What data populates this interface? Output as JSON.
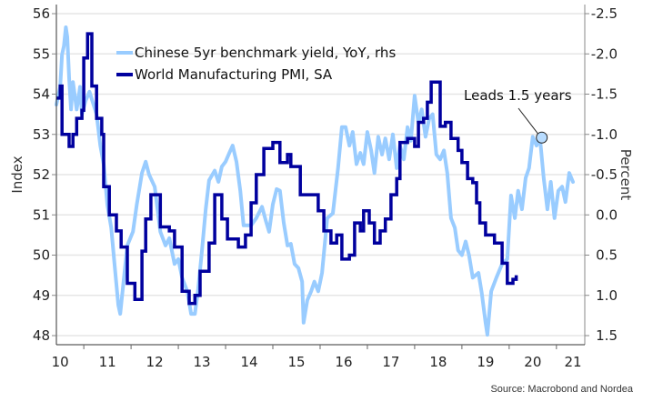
{
  "chart_data": {
    "type": "line",
    "title": "",
    "source": "Source: Macrobond and Nordea",
    "ylabel": "Index",
    "y2label": "Percent",
    "ylim": [
      48,
      56
    ],
    "y2lim": [
      -2.5,
      1.5
    ],
    "y2_inverted": true,
    "xlim": [
      2010.42,
      2021.6
    ],
    "grid": true,
    "yticks": [
      "48",
      "49",
      "50",
      "51",
      "52",
      "53",
      "54",
      "55",
      "56"
    ],
    "ytick_values": [
      48,
      49,
      50,
      51,
      52,
      53,
      54,
      55,
      56
    ],
    "y2ticks": [
      "-2.5",
      "-2.0",
      "-1.5",
      "-1.0",
      "-0.5",
      "0.0",
      "0.5",
      "1.0",
      "1.5"
    ],
    "y2tick_values": [
      -2.5,
      -2.0,
      -1.5,
      -1.0,
      -0.5,
      0.0,
      0.5,
      1.0,
      1.5
    ],
    "xtick_boundaries": [
      2011,
      2012,
      2013,
      2014,
      2015,
      2016,
      2017,
      2018,
      2019,
      2020,
      2021
    ],
    "xticks": [
      "10",
      "11",
      "12",
      "13",
      "14",
      "15",
      "16",
      "17",
      "18",
      "19",
      "20",
      "21"
    ],
    "xtick_label_years": [
      2010.5,
      2011.5,
      2012.5,
      2013.5,
      2014.5,
      2015.5,
      2016.5,
      2017.5,
      2018.5,
      2019.5,
      2020.5,
      2021.35
    ],
    "legend": {
      "placement": "top-left"
    },
    "colors": {
      "yield": "#99ccff",
      "pmi": "#00009e"
    },
    "annotation": {
      "text": "Leads 1.5 years",
      "x": 2020.69,
      "y2": -0.96
    },
    "series": [
      {
        "name": "Chinese 5yr benchmark yield, YoY, rhs",
        "axis": "right",
        "points": [
          [
            2010.42,
            -1.37
          ],
          [
            2010.5,
            -1.59
          ],
          [
            2010.54,
            -1.99
          ],
          [
            2010.58,
            -2.1
          ],
          [
            2010.62,
            -2.33
          ],
          [
            2010.65,
            -2.21
          ],
          [
            2010.69,
            -1.7
          ],
          [
            2010.73,
            -1.31
          ],
          [
            2010.77,
            -1.65
          ],
          [
            2010.81,
            -1.48
          ],
          [
            2010.85,
            -1.31
          ],
          [
            2010.88,
            -1.42
          ],
          [
            2010.92,
            -1.59
          ],
          [
            2010.96,
            -1.25
          ],
          [
            2011.04,
            -1.42
          ],
          [
            2011.12,
            -1.53
          ],
          [
            2011.19,
            -1.4
          ],
          [
            2011.27,
            -1.25
          ],
          [
            2011.35,
            -0.86
          ],
          [
            2011.42,
            -0.63
          ],
          [
            2011.5,
            -0.12
          ],
          [
            2011.58,
            0.16
          ],
          [
            2011.65,
            0.61
          ],
          [
            2011.73,
            1.12
          ],
          [
            2011.77,
            1.23
          ],
          [
            2011.85,
            0.78
          ],
          [
            2011.92,
            0.38
          ],
          [
            2012.04,
            0.21
          ],
          [
            2012.12,
            -0.12
          ],
          [
            2012.23,
            -0.52
          ],
          [
            2012.31,
            -0.66
          ],
          [
            2012.38,
            -0.5
          ],
          [
            2012.5,
            -0.35
          ],
          [
            2012.62,
            0.21
          ],
          [
            2012.73,
            0.38
          ],
          [
            2012.81,
            0.29
          ],
          [
            2012.92,
            0.61
          ],
          [
            2013.0,
            0.55
          ],
          [
            2013.08,
            0.78
          ],
          [
            2013.19,
            0.95
          ],
          [
            2013.27,
            1.23
          ],
          [
            2013.35,
            1.23
          ],
          [
            2013.42,
            0.92
          ],
          [
            2013.5,
            0.44
          ],
          [
            2013.58,
            -0.07
          ],
          [
            2013.65,
            -0.43
          ],
          [
            2013.77,
            -0.55
          ],
          [
            2013.85,
            -0.41
          ],
          [
            2013.92,
            -0.6
          ],
          [
            2014.0,
            -0.66
          ],
          [
            2014.08,
            -0.77
          ],
          [
            2014.15,
            -0.86
          ],
          [
            2014.23,
            -0.66
          ],
          [
            2014.31,
            -0.3
          ],
          [
            2014.38,
            0.13
          ],
          [
            2014.54,
            0.13
          ],
          [
            2014.65,
            0.04
          ],
          [
            2014.77,
            -0.1
          ],
          [
            2014.85,
            0.07
          ],
          [
            2014.92,
            0.21
          ],
          [
            2015.0,
            -0.13
          ],
          [
            2015.08,
            -0.32
          ],
          [
            2015.15,
            -0.3
          ],
          [
            2015.23,
            0.1
          ],
          [
            2015.31,
            0.38
          ],
          [
            2015.38,
            0.36
          ],
          [
            2015.46,
            0.61
          ],
          [
            2015.54,
            0.66
          ],
          [
            2015.62,
            0.83
          ],
          [
            2015.65,
            1.34
          ],
          [
            2015.73,
            1.06
          ],
          [
            2015.81,
            0.95
          ],
          [
            2015.88,
            0.83
          ],
          [
            2015.96,
            0.95
          ],
          [
            2016.04,
            0.72
          ],
          [
            2016.15,
            0.04
          ],
          [
            2016.27,
            -0.02
          ],
          [
            2016.38,
            -0.58
          ],
          [
            2016.46,
            -1.09
          ],
          [
            2016.54,
            -1.09
          ],
          [
            2016.62,
            -0.86
          ],
          [
            2016.69,
            -1.03
          ],
          [
            2016.77,
            -0.63
          ],
          [
            2016.85,
            -0.77
          ],
          [
            2016.92,
            -0.63
          ],
          [
            2017.0,
            -1.03
          ],
          [
            2017.08,
            -0.8
          ],
          [
            2017.15,
            -0.52
          ],
          [
            2017.23,
            -0.97
          ],
          [
            2017.31,
            -0.75
          ],
          [
            2017.38,
            -0.95
          ],
          [
            2017.46,
            -0.69
          ],
          [
            2017.54,
            -1.0
          ],
          [
            2017.62,
            -0.58
          ],
          [
            2017.69,
            -0.86
          ],
          [
            2017.77,
            -0.69
          ],
          [
            2017.85,
            -1.09
          ],
          [
            2017.92,
            -0.92
          ],
          [
            2018.0,
            -1.48
          ],
          [
            2018.08,
            -1.14
          ],
          [
            2018.15,
            -1.31
          ],
          [
            2018.23,
            -0.97
          ],
          [
            2018.31,
            -1.2
          ],
          [
            2018.38,
            -1.25
          ],
          [
            2018.46,
            -0.75
          ],
          [
            2018.54,
            -0.69
          ],
          [
            2018.62,
            -0.8
          ],
          [
            2018.69,
            -0.52
          ],
          [
            2018.77,
            0.04
          ],
          [
            2018.85,
            0.16
          ],
          [
            2018.92,
            0.44
          ],
          [
            2019.0,
            0.5
          ],
          [
            2019.08,
            0.33
          ],
          [
            2019.15,
            0.5
          ],
          [
            2019.23,
            0.78
          ],
          [
            2019.35,
            0.72
          ],
          [
            2019.42,
            0.97
          ],
          [
            2019.5,
            1.34
          ],
          [
            2019.54,
            1.49
          ],
          [
            2019.62,
            0.95
          ],
          [
            2019.73,
            0.78
          ],
          [
            2019.85,
            0.61
          ],
          [
            2019.96,
            0.55
          ],
          [
            2020.04,
            -0.24
          ],
          [
            2020.12,
            0.04
          ],
          [
            2020.19,
            -0.3
          ],
          [
            2020.27,
            -0.07
          ],
          [
            2020.35,
            -0.46
          ],
          [
            2020.42,
            -0.58
          ],
          [
            2020.5,
            -0.97
          ],
          [
            2020.58,
            -0.86
          ],
          [
            2020.65,
            -0.97
          ],
          [
            2020.73,
            -0.46
          ],
          [
            2020.81,
            -0.07
          ],
          [
            2020.88,
            -0.41
          ],
          [
            2020.96,
            0.04
          ],
          [
            2021.04,
            -0.3
          ],
          [
            2021.12,
            -0.35
          ],
          [
            2021.19,
            -0.16
          ],
          [
            2021.27,
            -0.52
          ],
          [
            2021.35,
            -0.41
          ]
        ]
      },
      {
        "name": "World Manufacturing PMI, SA",
        "axis": "left",
        "step": true,
        "points": [
          [
            2010.42,
            53.9
          ],
          [
            2010.5,
            54.2
          ],
          [
            2010.54,
            53.0
          ],
          [
            2010.65,
            53.0
          ],
          [
            2010.69,
            52.7
          ],
          [
            2010.77,
            53.0
          ],
          [
            2010.85,
            53.4
          ],
          [
            2010.96,
            53.6
          ],
          [
            2011.0,
            54.9
          ],
          [
            2011.06,
            54.9
          ],
          [
            2011.08,
            55.5
          ],
          [
            2011.15,
            55.5
          ],
          [
            2011.17,
            54.2
          ],
          [
            2011.25,
            54.2
          ],
          [
            2011.27,
            53.4
          ],
          [
            2011.38,
            53.0
          ],
          [
            2011.42,
            51.7
          ],
          [
            2011.54,
            51.0
          ],
          [
            2011.69,
            50.6
          ],
          [
            2011.79,
            50.2
          ],
          [
            2011.92,
            49.3
          ],
          [
            2012.08,
            48.9
          ],
          [
            2012.23,
            50.1
          ],
          [
            2012.31,
            50.9
          ],
          [
            2012.42,
            51.5
          ],
          [
            2012.5,
            51.5
          ],
          [
            2012.62,
            50.7
          ],
          [
            2012.81,
            50.6
          ],
          [
            2012.92,
            50.2
          ],
          [
            2013.08,
            49.1
          ],
          [
            2013.23,
            48.8
          ],
          [
            2013.35,
            49.0
          ],
          [
            2013.46,
            49.6
          ],
          [
            2013.65,
            50.3
          ],
          [
            2013.77,
            51.5
          ],
          [
            2013.92,
            50.9
          ],
          [
            2014.04,
            50.4
          ],
          [
            2014.15,
            50.4
          ],
          [
            2014.27,
            50.2
          ],
          [
            2014.42,
            50.5
          ],
          [
            2014.54,
            51.3
          ],
          [
            2014.65,
            52.0
          ],
          [
            2014.81,
            52.65
          ],
          [
            2015.0,
            52.8
          ],
          [
            2015.15,
            52.3
          ],
          [
            2015.31,
            52.5
          ],
          [
            2015.38,
            52.2
          ],
          [
            2015.58,
            51.5
          ],
          [
            2015.77,
            51.5
          ],
          [
            2015.96,
            51.1
          ],
          [
            2016.08,
            50.6
          ],
          [
            2016.23,
            50.3
          ],
          [
            2016.35,
            50.5
          ],
          [
            2016.46,
            49.9
          ],
          [
            2016.62,
            50.0
          ],
          [
            2016.73,
            50.8
          ],
          [
            2016.85,
            50.6
          ],
          [
            2016.92,
            51.1
          ],
          [
            2017.04,
            50.8
          ],
          [
            2017.15,
            50.3
          ],
          [
            2017.27,
            50.6
          ],
          [
            2017.38,
            50.9
          ],
          [
            2017.5,
            51.5
          ],
          [
            2017.62,
            51.9
          ],
          [
            2017.69,
            52.8
          ],
          [
            2017.85,
            52.9
          ],
          [
            2018.0,
            52.7
          ],
          [
            2018.08,
            53.3
          ],
          [
            2018.19,
            53.4
          ],
          [
            2018.27,
            53.8
          ],
          [
            2018.35,
            54.3
          ],
          [
            2018.46,
            54.3
          ],
          [
            2018.54,
            53.2
          ],
          [
            2018.65,
            53.3
          ],
          [
            2018.77,
            52.9
          ],
          [
            2018.92,
            52.6
          ],
          [
            2019.0,
            52.3
          ],
          [
            2019.12,
            51.9
          ],
          [
            2019.23,
            51.8
          ],
          [
            2019.31,
            51.3
          ],
          [
            2019.38,
            50.8
          ],
          [
            2019.5,
            50.5
          ],
          [
            2019.69,
            50.3
          ],
          [
            2019.85,
            49.8
          ],
          [
            2019.96,
            49.3
          ],
          [
            2020.08,
            49.4
          ],
          [
            2020.15,
            49.5
          ]
        ]
      }
    ]
  }
}
